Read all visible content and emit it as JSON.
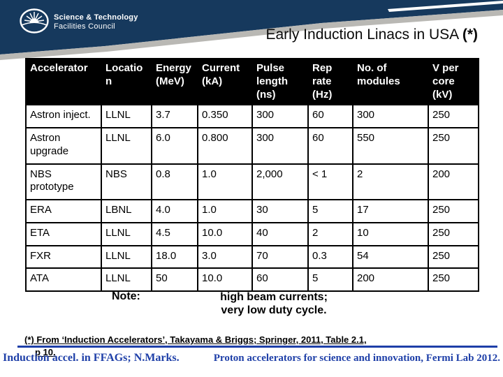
{
  "slide": {
    "logo": {
      "org_line1": "Science & Technology",
      "org_line2": "Facilities Council"
    },
    "title": {
      "main": "Early Induction Linacs in USA ",
      "mark": "(*)"
    },
    "table": {
      "columns": [
        "Accelerator",
        "Location",
        "Energy (MeV)",
        "Current (kA)",
        "Pulse length (ns)",
        "Rep rate (Hz)",
        "No. of modules",
        "V per core (kV)"
      ],
      "rows": [
        [
          "Astron inject.",
          "LLNL",
          "3.7",
          "0.350",
          "300",
          "60",
          "300",
          "250"
        ],
        [
          "Astron upgrade",
          "LLNL",
          "6.0",
          "0.800",
          "300",
          "60",
          "550",
          "250"
        ],
        [
          "NBS prototype",
          "NBS",
          "0.8",
          "1.0",
          "2,000",
          "< 1",
          "2",
          "200"
        ],
        [
          "ERA",
          "LBNL",
          "4.0",
          "1.0",
          "30",
          "5",
          "17",
          "250"
        ],
        [
          "ETA",
          "LLNL",
          "4.5",
          "10.0",
          "40",
          "2",
          "10",
          "250"
        ],
        [
          "FXR",
          "LLNL",
          "18.0",
          "3.0",
          "70",
          "0.3",
          "54",
          "250"
        ],
        [
          "ATA",
          "LLNL",
          "50",
          "10.0",
          "60",
          "5",
          "200",
          "250"
        ]
      ]
    },
    "note": {
      "label": "Note:",
      "line1": "high beam currents;",
      "line2": "very low duty cycle."
    },
    "footnote": {
      "line1": "(*) From ‘Induction Accelerators’, Takayama & Briggs; Springer, 2011, Table 2.1,",
      "line2": "p 10."
    },
    "footer": {
      "left": "Induction accel. in FFAGs; N.Marks.",
      "right": "Proton accelerators for science and innovation, Fermi Lab 2012."
    },
    "colors": {
      "banner_navy": "#16395d",
      "stripe_gray": "#b9b8b4",
      "accent_blue": "#1e3fa8",
      "table_header_bg": "#000000",
      "table_header_text": "#ffffff"
    }
  }
}
